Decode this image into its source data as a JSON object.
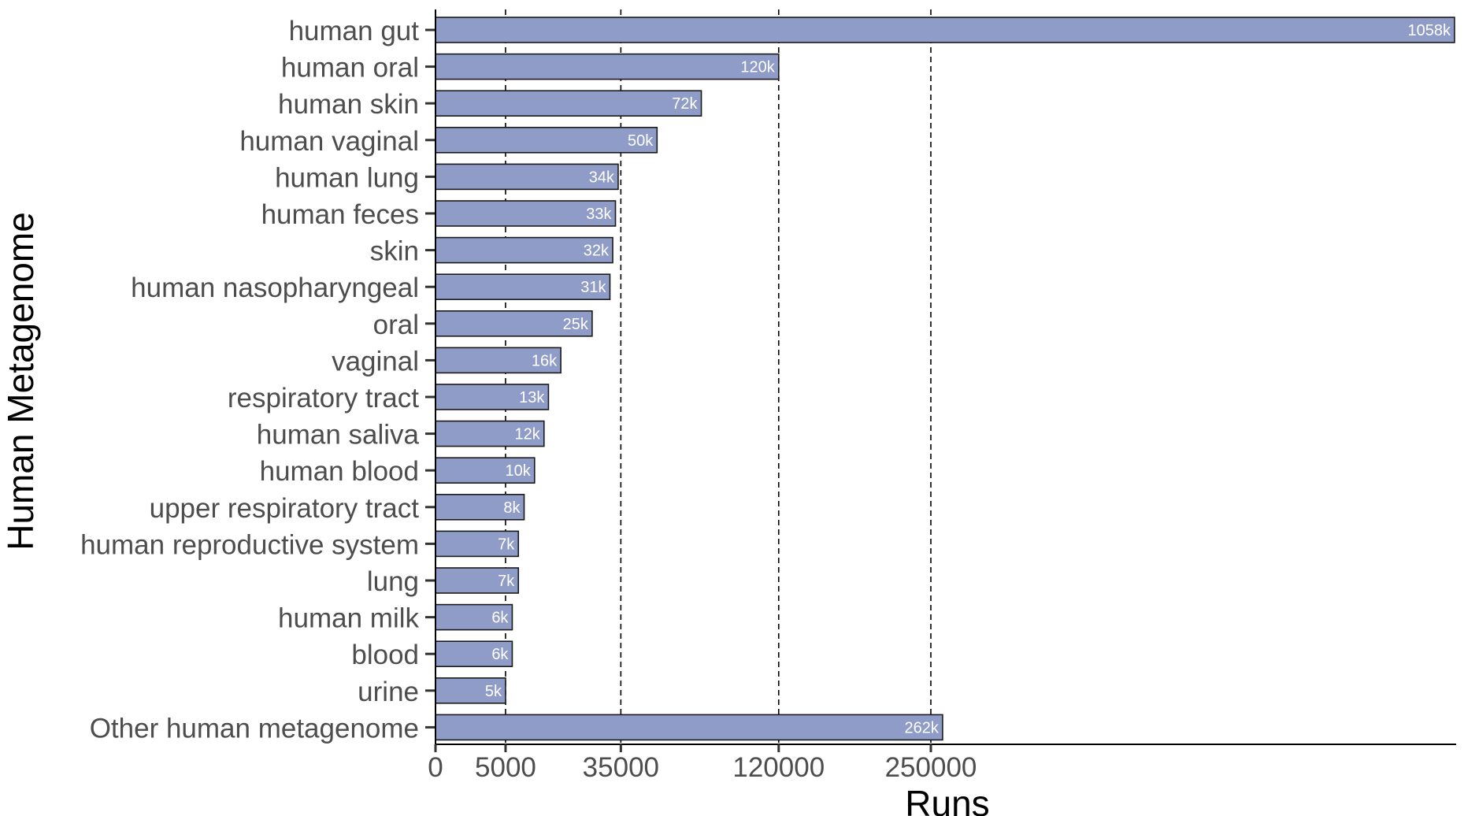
{
  "chart_data": {
    "type": "bar",
    "orientation": "horizontal",
    "xlabel": "Runs",
    "ylabel": "Human Metagenome",
    "x_scale": "sqrt",
    "x_ticks": [
      0,
      5000,
      35000,
      120000,
      250000
    ],
    "x_tick_labels": [
      "0",
      "5000",
      "35000",
      "120000",
      "250000"
    ],
    "gridlines": "vertical dashed at 5000, 35000, 120000, 250000",
    "bar_color": "#8f9cc7",
    "categories": [
      "human gut",
      "human oral",
      "human skin",
      "human vaginal",
      "human lung",
      "human feces",
      "skin",
      "human nasopharyngeal",
      "oral",
      "vaginal",
      "respiratory tract",
      "human saliva",
      "human blood",
      "upper respiratory tract",
      "human reproductive system",
      "lung",
      "human milk",
      "blood",
      "urine",
      "Other human metagenome"
    ],
    "values": [
      1058000,
      120000,
      72000,
      50000,
      34000,
      33000,
      32000,
      31000,
      25000,
      16000,
      13000,
      12000,
      10000,
      8000,
      7000,
      7000,
      6000,
      6000,
      5000,
      262000
    ],
    "value_labels": [
      "1058k",
      "120k",
      "72k",
      "50k",
      "34k",
      "33k",
      "32k",
      "31k",
      "25k",
      "16k",
      "13k",
      "12k",
      "10k",
      "8k",
      "7k",
      "7k",
      "6k",
      "6k",
      "5k",
      "262k"
    ]
  }
}
